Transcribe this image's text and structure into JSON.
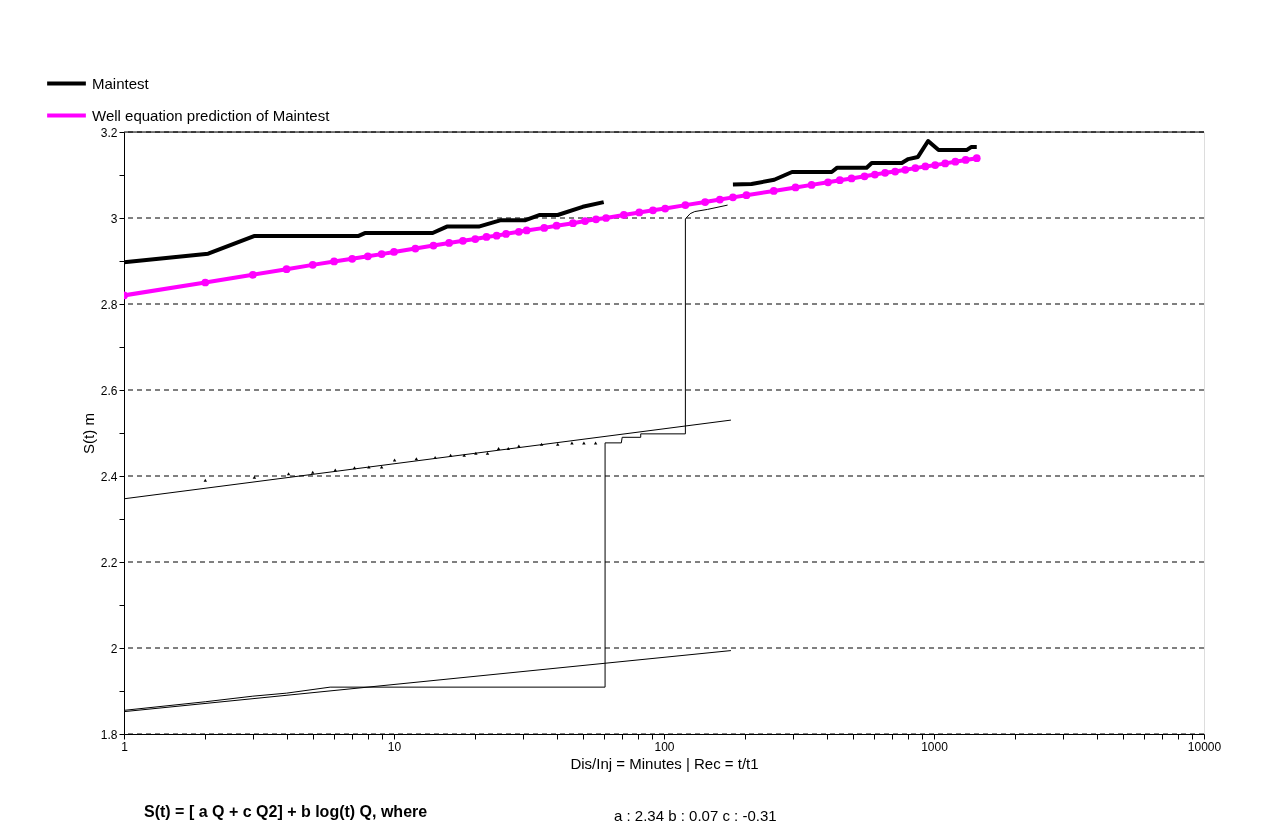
{
  "chart_data": {
    "type": "line",
    "xlabel": "Dis/Inj = Minutes | Rec = t/t1",
    "ylabel": "S(t) m",
    "annotations": [
      "S(t) = [ a Q + c Q2] + b log(t) Q, where",
      "a : 2.34 b : 0.07 c : -0.31"
    ],
    "log": "x",
    "grid": "y",
    "legend": "top left",
    "xlim": [
      1,
      10000
    ],
    "ylim": [
      1.8,
      3.2
    ],
    "xticks": [
      1,
      {
        "value": 2,
        "label": null
      },
      {
        "value": 3,
        "label": null
      },
      {
        "value": 4,
        "label": null
      },
      {
        "value": 5,
        "label": null
      },
      {
        "value": 6,
        "label": null
      },
      {
        "value": 7,
        "label": null
      },
      {
        "value": 8,
        "label": null
      },
      {
        "value": 9,
        "label": null
      },
      10,
      {
        "value": 20,
        "label": null
      },
      {
        "value": 30,
        "label": null
      },
      {
        "value": 40,
        "label": null
      },
      {
        "value": 50,
        "label": null
      },
      {
        "value": 60,
        "label": null
      },
      {
        "value": 70,
        "label": null
      },
      {
        "value": 80,
        "label": null
      },
      {
        "value": 90,
        "label": null
      },
      100,
      {
        "value": 200,
        "label": null
      },
      {
        "value": 300,
        "label": null
      },
      {
        "value": 400,
        "label": null
      },
      {
        "value": 500,
        "label": null
      },
      {
        "value": 600,
        "label": null
      },
      {
        "value": 700,
        "label": null
      },
      {
        "value": 800,
        "label": null
      },
      {
        "value": 900,
        "label": null
      },
      1000,
      {
        "value": 2000,
        "label": null
      },
      {
        "value": 3000,
        "label": null
      },
      {
        "value": 4000,
        "label": null
      },
      {
        "value": 5000,
        "label": null
      },
      {
        "value": 6000,
        "label": null
      },
      {
        "value": 7000,
        "label": null
      },
      {
        "value": 8000,
        "label": null
      },
      {
        "value": 9000,
        "label": null
      },
      10000
    ],
    "yticks": [
      1.8,
      {
        "value": 1.9,
        "label": null
      },
      2,
      {
        "value": 2.1,
        "label": null
      },
      2.2,
      {
        "value": 2.3,
        "label": null
      },
      2.4,
      {
        "value": 2.5,
        "label": null
      },
      2.6,
      {
        "value": 2.7,
        "label": null
      },
      2.8,
      {
        "value": 2.9,
        "label": null
      },
      3,
      {
        "value": 3.1,
        "label": null
      },
      3.2
    ],
    "series": [
      {
        "type": "line",
        "color": "#000000",
        "marker": "none",
        "line_style": "solid",
        "x": [
          1,
          177
        ],
        "values": [
          2.347,
          2.53
        ]
      },
      {
        "type": "line",
        "color": "#000000",
        "marker": "none",
        "line_style": "solid",
        "x": [
          1,
          177
        ],
        "values": [
          1.852,
          1.994
        ]
      },
      {
        "type": "line",
        "color": "#000000",
        "marker": "none",
        "line_style": "solid",
        "x": [
          1,
          2,
          3,
          4,
          5.8,
          60.5,
          60.5,
          69.5,
          70,
          82,
          82,
          120,
          120,
          125,
          130,
          145,
          172
        ],
        "values": [
          1.855,
          1.875,
          1.888,
          1.895,
          1.909,
          1.909,
          2.477,
          2.477,
          2.49,
          2.49,
          2.498,
          2.498,
          2.998,
          3.01,
          3.015,
          3.02,
          3.03
        ]
      },
      {
        "type": "scatter",
        "color": "#000000",
        "marker": "triangle",
        "x": [
          2,
          3.04,
          4.07,
          5,
          6.06,
          7.14,
          8.07,
          9,
          10.05,
          12.1,
          14.2,
          16.2,
          18.2,
          20.1,
          22.2,
          24.4,
          26.5,
          29,
          35.2,
          40.4,
          45.6,
          50.5,
          55.8
        ],
        "values": [
          2.39,
          2.397,
          2.405,
          2.409,
          2.414,
          2.419,
          2.421,
          2.421,
          2.437,
          2.44,
          2.443,
          2.448,
          2.448,
          2.453,
          2.453,
          2.464,
          2.464,
          2.47,
          2.474,
          2.474,
          2.477,
          2.477,
          2.477
        ]
      },
      {
        "type": "line",
        "name": "Maintest",
        "color": "#000000",
        "marker": "none",
        "line_style": "solid",
        "x": [
          1,
          2.05,
          3.03,
          7.36,
          7.8,
          13.9,
          15.7,
          20.6,
          24.9,
          30.7,
          34.7,
          40.4,
          50,
          59.8,
          100,
          180,
          211,
          256,
          298,
          418,
          438,
          563,
          588,
          760,
          803,
          872,
          951,
          1040,
          1320,
          1372,
          1440
        ],
        "values": [
          2.897,
          2.917,
          2.958,
          2.958,
          2.965,
          2.965,
          2.98,
          2.98,
          2.995,
          2.995,
          3.007,
          3.007,
          3.026,
          3.037,
          null,
          3.078,
          3.079,
          3.089,
          3.107,
          3.107,
          3.117,
          3.117,
          3.128,
          3.128,
          3.137,
          3.142,
          3.179,
          3.158,
          3.158,
          3.165,
          3.165
        ]
      },
      {
        "type": "line",
        "name": "Well equation prediction of Maintest",
        "color": "#ff00ff",
        "marker": "circle",
        "line_style": "solid",
        "x": [
          1,
          2,
          3,
          4,
          5,
          6,
          7,
          8,
          9,
          10,
          12,
          14,
          16,
          18,
          20,
          22,
          24,
          26,
          29,
          31,
          36,
          40,
          46,
          51,
          56,
          61,
          71,
          81,
          91,
          101,
          120,
          142,
          161,
          180,
          202,
          255,
          307,
          352,
          405,
          448,
          495,
          553,
          604,
          659,
          718,
          783,
          853,
          929,
          1010,
          1100,
          1200,
          1310,
          1440
        ],
        "values": [
          2.82,
          2.85,
          2.868,
          2.881,
          2.891,
          2.899,
          2.905,
          2.911,
          2.916,
          2.921,
          2.929,
          2.936,
          2.942,
          2.947,
          2.951,
          2.956,
          2.959,
          2.963,
          2.968,
          2.971,
          2.977,
          2.982,
          2.988,
          2.993,
          2.997,
          3.0,
          3.007,
          3.013,
          3.018,
          3.022,
          3.03,
          3.037,
          3.043,
          3.048,
          3.053,
          3.063,
          3.071,
          3.077,
          3.083,
          3.088,
          3.092,
          3.097,
          3.101,
          3.105,
          3.108,
          3.112,
          3.116,
          3.12,
          3.123,
          3.127,
          3.131,
          3.135,
          3.139
        ]
      }
    ]
  }
}
